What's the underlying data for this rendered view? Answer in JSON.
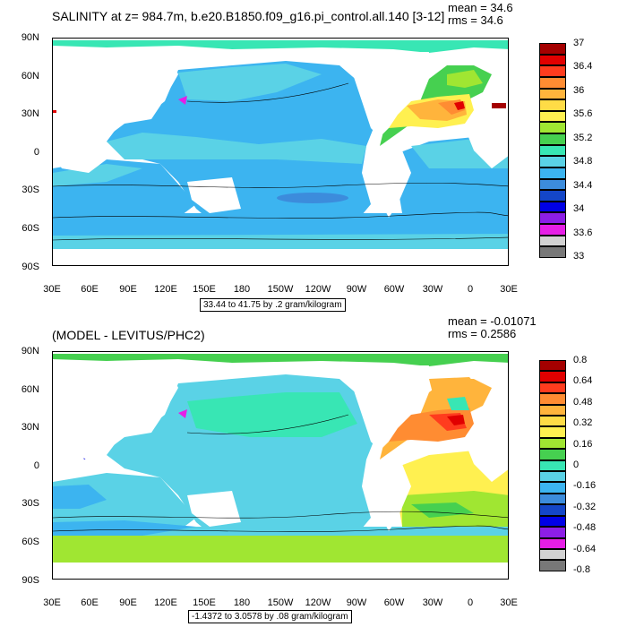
{
  "panels": [
    {
      "title": "SALINITY at z= 984.7m, b.e20.B1850.f09_g16.pi_control.all.140 [3-12]",
      "mean_label": "mean = 34.6",
      "rms_label": "rms = 34.6",
      "range_label": "33.44 to 41.75 by .2 gram/kilogram",
      "lat_labels": [
        "90N",
        "60N",
        "30N",
        "0",
        "30S",
        "60S",
        "90S"
      ],
      "lon_labels": [
        "30E",
        "60E",
        "90E",
        "120E",
        "150E",
        "180",
        "150W",
        "120W",
        "90W",
        "60W",
        "30W",
        "0",
        "30E"
      ],
      "colorbar": {
        "colors": [
          "#a40000",
          "#e10000",
          "#ff3c1e",
          "#ff8c32",
          "#ffb43c",
          "#ffdc46",
          "#fff050",
          "#a0e632",
          "#46d050",
          "#38e6b4",
          "#5ad2e6",
          "#3cb4f0",
          "#3c8cdc",
          "#1446c8",
          "#0000e6",
          "#8c1ee6",
          "#e61ee6",
          "#d2d2d2",
          "#787878"
        ],
        "labels": [
          "37",
          "36.4",
          "36",
          "35.6",
          "35.2",
          "34.8",
          "34.4",
          "34",
          "33.6",
          "33"
        ]
      }
    },
    {
      "title": "(MODEL - LEVITUS/PHC2)",
      "mean_label": "mean = -0.01071",
      "rms_label": "rms = 0.2586",
      "range_label": "-1.4372 to 3.0578 by .08 gram/kilogram",
      "lat_labels": [
        "90N",
        "60N",
        "30N",
        "0",
        "30S",
        "60S",
        "90S"
      ],
      "lon_labels": [
        "30E",
        "60E",
        "90E",
        "120E",
        "150E",
        "180",
        "150W",
        "120W",
        "90W",
        "60W",
        "30W",
        "0",
        "30E"
      ],
      "colorbar": {
        "colors": [
          "#a40000",
          "#e10000",
          "#ff3c1e",
          "#ff8c32",
          "#ffb43c",
          "#ffdc46",
          "#fff050",
          "#a0e632",
          "#46d050",
          "#38e6b4",
          "#5ad2e6",
          "#3cb4f0",
          "#3c8cdc",
          "#1446c8",
          "#0000e6",
          "#8c1ee6",
          "#e61ee6",
          "#d2d2d2",
          "#787878"
        ],
        "labels": [
          "0.8",
          "0.64",
          "0.48",
          "0.32",
          "0.16",
          "0",
          "-0.16",
          "-0.32",
          "-0.48",
          "-0.64",
          "-0.8"
        ]
      }
    }
  ]
}
